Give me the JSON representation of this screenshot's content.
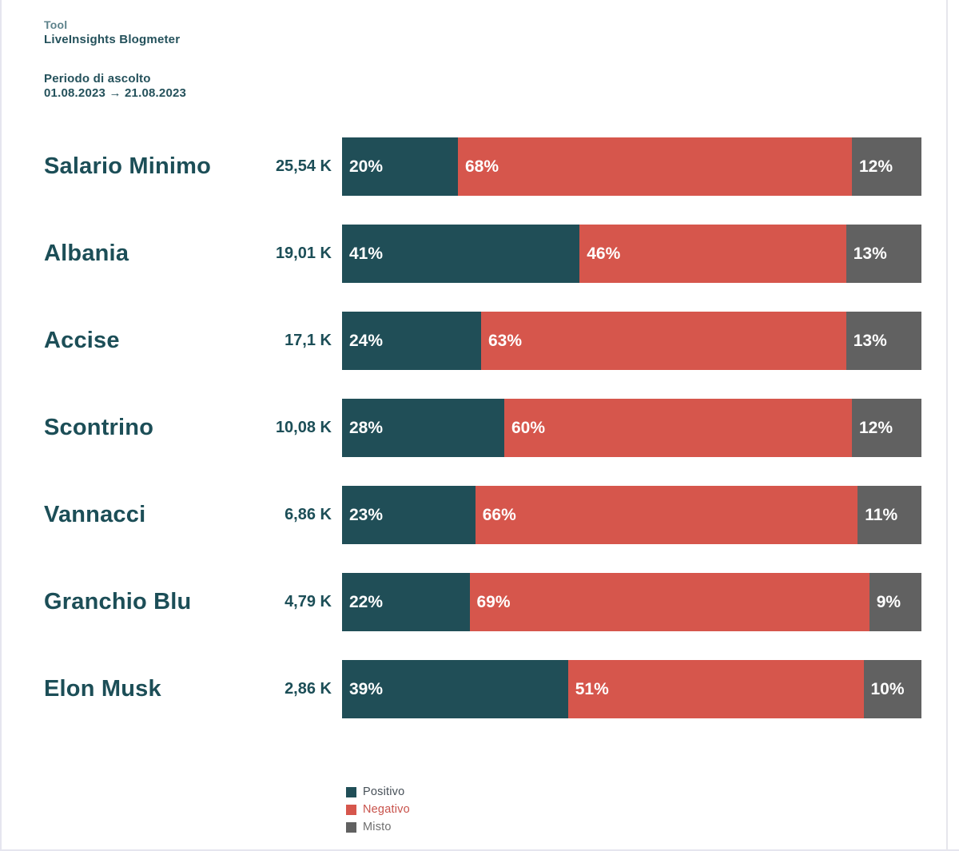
{
  "header": {
    "tool_label": "Tool",
    "tool_name": "LiveInsights Blogmeter",
    "period_label": "Periodo di ascolto",
    "period_value": "01.08.2023 → 21.08.2023"
  },
  "colors": {
    "positive": "#204e57",
    "negative": "#d6564c",
    "mixed": "#616161",
    "label_text": "#1c4e57",
    "header_muted": "#5d828b",
    "header_strong": "#24515b"
  },
  "chart_data": {
    "type": "bar",
    "orientation": "horizontal",
    "stacked": true,
    "categories": [
      "Salario Minimo",
      "Albania",
      "Accise",
      "Scontrino",
      "Vannacci",
      "Granchio Blu",
      "Elon Musk"
    ],
    "volumes": [
      "25,54 K",
      "19,01 K",
      "17,1 K",
      "10,08 K",
      "6,86 K",
      "4,79 K",
      "2,86 K"
    ],
    "series": [
      {
        "name": "Positivo",
        "key": "positivo",
        "color": "#204e57",
        "values": [
          20,
          41,
          24,
          28,
          23,
          22,
          39
        ]
      },
      {
        "name": "Negativo",
        "key": "negativo",
        "color": "#d6564c",
        "values": [
          68,
          46,
          63,
          60,
          66,
          69,
          51
        ]
      },
      {
        "name": "Misto",
        "key": "misto",
        "color": "#616161",
        "values": [
          12,
          13,
          13,
          12,
          11,
          9,
          10
        ]
      }
    ],
    "value_suffix": "%",
    "axis": "percent 0-100, no gridlines, labels inside segments",
    "legend_position": "bottom"
  },
  "legend": {
    "items": [
      {
        "label": "Positivo",
        "swatch": "#204e57",
        "text_color": "#475058"
      },
      {
        "label": "Negativo",
        "swatch": "#d6564c",
        "text_color": "#c8524b"
      },
      {
        "label": "Misto",
        "swatch": "#616161",
        "text_color": "#6f6f6f"
      }
    ]
  }
}
